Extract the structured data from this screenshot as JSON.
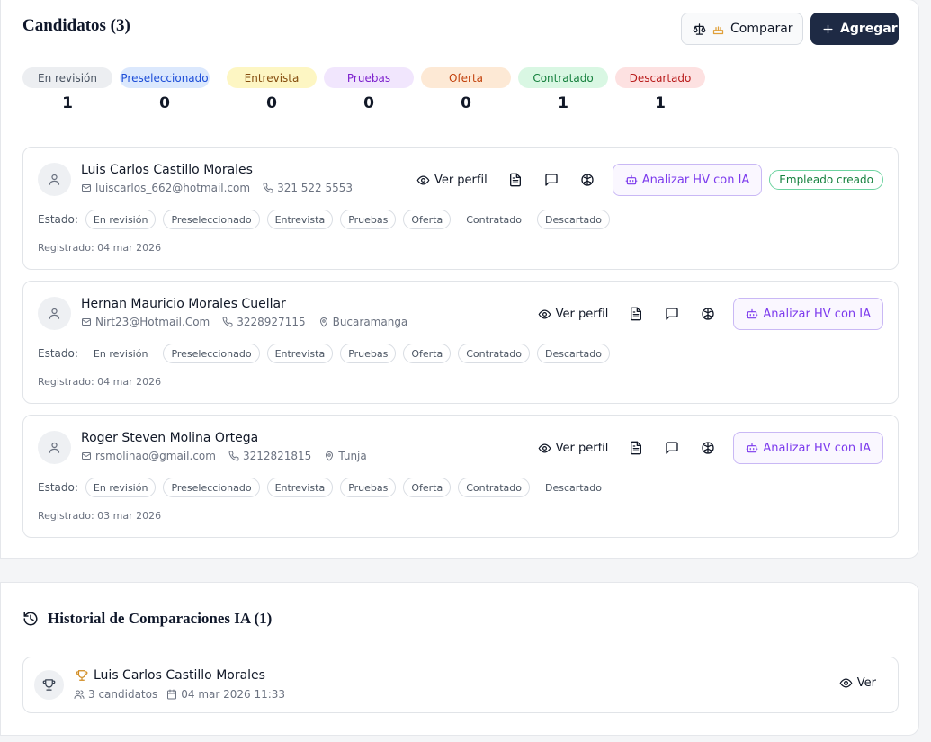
{
  "header": {
    "title": "Candidatos (3)",
    "compare": "Comparar",
    "add": "Agregar"
  },
  "statuses": [
    {
      "label": "En revisión",
      "count": "1"
    },
    {
      "label": "Preseleccionado",
      "count": "0"
    },
    {
      "label": "Entrevista",
      "count": "0"
    },
    {
      "label": "Pruebas",
      "count": "0"
    },
    {
      "label": "Oferta",
      "count": "0"
    },
    {
      "label": "Contratado",
      "count": "1"
    },
    {
      "label": "Descartado",
      "count": "1"
    }
  ],
  "labels": {
    "view": "Ver perfil",
    "analyze": "Analizar HV con IA",
    "state": "Estado:"
  },
  "candidates": [
    {
      "name": "Luis Carlos Castillo Morales",
      "email": "luiscarlos_662@hotmail.com",
      "phone": "321 522 5553",
      "location": null,
      "badge": "Empleado creado",
      "active": "Contratado",
      "registered": "Registrado: 04 mar 2026"
    },
    {
      "name": "Hernan Mauricio Morales Cuellar",
      "email": "Nirt23@Hotmail.Com",
      "phone": "3228927115",
      "location": "Bucaramanga",
      "badge": null,
      "active": "En revisión",
      "registered": "Registrado: 04 mar 2026"
    },
    {
      "name": "Roger Steven Molina Ortega",
      "email": "rsmolinao@gmail.com",
      "phone": "3212821815",
      "location": "Tunja",
      "badge": null,
      "active": "Descartado",
      "registered": "Registrado: 03 mar 2026"
    }
  ],
  "history": {
    "title": "Historial de Comparaciones IA (1)",
    "items": [
      {
        "name": "Luis Carlos Castillo Morales",
        "candidates": "3 candidatos",
        "date": "04 mar 2026 11:33",
        "action": "Ver"
      }
    ]
  }
}
